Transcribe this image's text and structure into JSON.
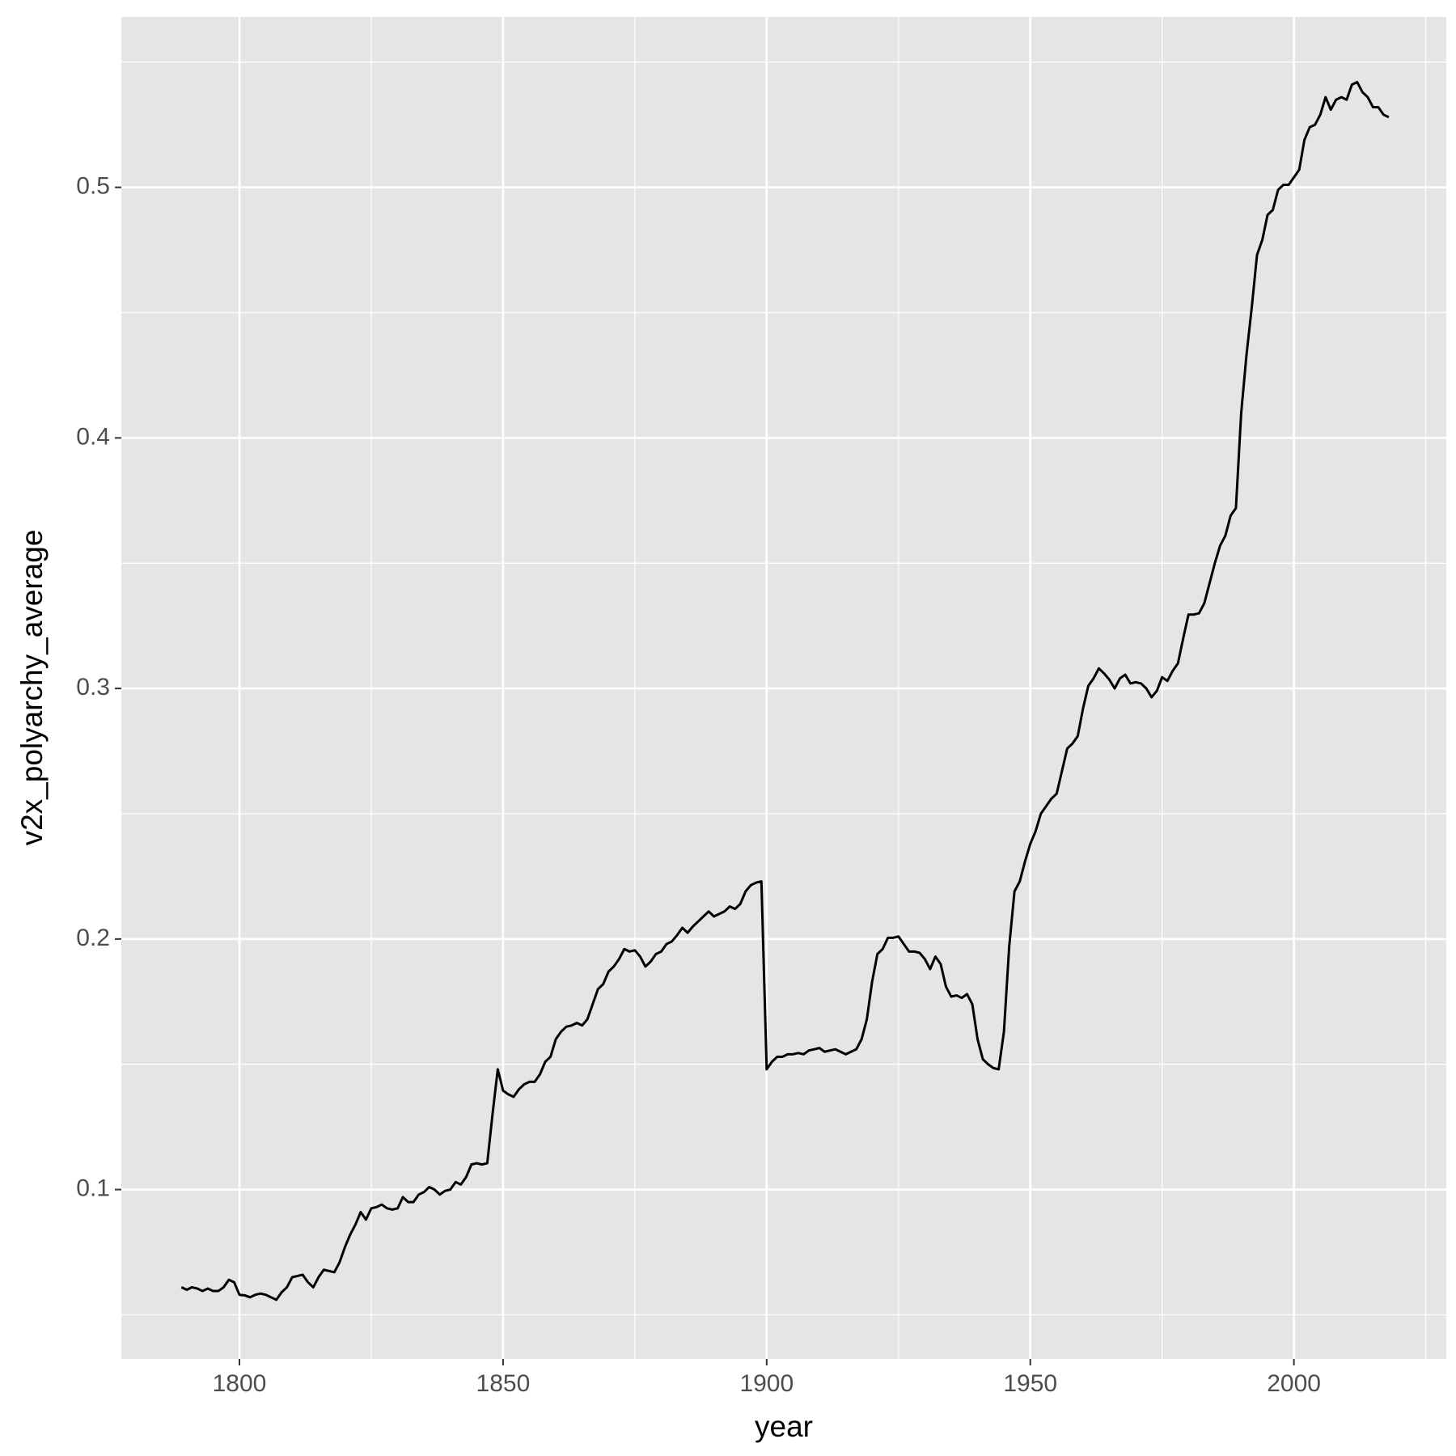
{
  "chart_data": {
    "type": "line",
    "x_label": "year",
    "y_label": "v2x_polyarchy_average",
    "x": [
      1789,
      1790,
      1791,
      1792,
      1793,
      1794,
      1795,
      1796,
      1797,
      1798,
      1799,
      1800,
      1801,
      1802,
      1803,
      1804,
      1805,
      1806,
      1807,
      1808,
      1809,
      1810,
      1811,
      1812,
      1813,
      1814,
      1815,
      1816,
      1817,
      1818,
      1819,
      1820,
      1821,
      1822,
      1823,
      1824,
      1825,
      1826,
      1827,
      1828,
      1829,
      1830,
      1831,
      1832,
      1833,
      1834,
      1835,
      1836,
      1837,
      1838,
      1839,
      1840,
      1841,
      1842,
      1843,
      1844,
      1845,
      1846,
      1847,
      1848,
      1849,
      1850,
      1851,
      1852,
      1853,
      1854,
      1855,
      1856,
      1857,
      1858,
      1859,
      1860,
      1861,
      1862,
      1863,
      1864,
      1865,
      1866,
      1867,
      1868,
      1869,
      1870,
      1871,
      1872,
      1873,
      1874,
      1875,
      1876,
      1877,
      1878,
      1879,
      1880,
      1881,
      1882,
      1883,
      1884,
      1885,
      1886,
      1887,
      1888,
      1889,
      1890,
      1891,
      1892,
      1893,
      1894,
      1895,
      1896,
      1897,
      1898,
      1899,
      1900,
      1901,
      1902,
      1903,
      1904,
      1905,
      1906,
      1907,
      1908,
      1909,
      1910,
      1911,
      1912,
      1913,
      1914,
      1915,
      1916,
      1917,
      1918,
      1919,
      1920,
      1921,
      1922,
      1923,
      1924,
      1925,
      1926,
      1927,
      1928,
      1929,
      1930,
      1931,
      1932,
      1933,
      1934,
      1935,
      1936,
      1937,
      1938,
      1939,
      1940,
      1941,
      1942,
      1943,
      1944,
      1945,
      1946,
      1947,
      1948,
      1949,
      1950,
      1951,
      1952,
      1953,
      1954,
      1955,
      1956,
      1957,
      1958,
      1959,
      1960,
      1961,
      1962,
      1963,
      1964,
      1965,
      1966,
      1967,
      1968,
      1969,
      1970,
      1971,
      1972,
      1973,
      1974,
      1975,
      1976,
      1977,
      1978,
      1979,
      1980,
      1981,
      1982,
      1983,
      1984,
      1985,
      1986,
      1987,
      1988,
      1989,
      1990,
      1991,
      1992,
      1993,
      1994,
      1995,
      1996,
      1997,
      1998,
      1999,
      2000,
      2001,
      2002,
      2003,
      2004,
      2005,
      2006,
      2007,
      2008,
      2009,
      2010,
      2011,
      2012,
      2013,
      2014,
      2015,
      2016,
      2017,
      2018
    ],
    "values": [
      0.061,
      0.06,
      0.061,
      0.0605,
      0.0595,
      0.0605,
      0.0595,
      0.0595,
      0.061,
      0.064,
      0.063,
      0.058,
      0.0578,
      0.057,
      0.058,
      0.0585,
      0.058,
      0.057,
      0.056,
      0.059,
      0.061,
      0.065,
      0.0655,
      0.066,
      0.063,
      0.061,
      0.065,
      0.068,
      0.0675,
      0.067,
      0.071,
      0.077,
      0.082,
      0.086,
      0.091,
      0.088,
      0.0925,
      0.093,
      0.094,
      0.0925,
      0.092,
      0.0925,
      0.097,
      0.095,
      0.095,
      0.098,
      0.099,
      0.101,
      0.1,
      0.098,
      0.0995,
      0.1,
      0.103,
      0.102,
      0.105,
      0.11,
      0.1105,
      0.11,
      0.1105,
      0.13,
      0.148,
      0.1395,
      0.138,
      0.137,
      0.14,
      0.142,
      0.143,
      0.143,
      0.146,
      0.151,
      0.153,
      0.16,
      0.163,
      0.165,
      0.1655,
      0.1665,
      0.1655,
      0.168,
      0.174,
      0.18,
      0.182,
      0.187,
      0.189,
      0.192,
      0.196,
      0.195,
      0.1955,
      0.193,
      0.189,
      0.191,
      0.194,
      0.195,
      0.198,
      0.199,
      0.2015,
      0.2045,
      0.2025,
      0.205,
      0.207,
      0.209,
      0.211,
      0.209,
      0.21,
      0.211,
      0.213,
      0.212,
      0.214,
      0.219,
      0.2215,
      0.2225,
      0.223,
      0.148,
      0.151,
      0.153,
      0.153,
      0.154,
      0.154,
      0.1545,
      0.154,
      0.1555,
      0.156,
      0.1565,
      0.155,
      0.1555,
      0.156,
      0.155,
      0.154,
      0.155,
      0.156,
      0.16,
      0.168,
      0.183,
      0.194,
      0.196,
      0.2005,
      0.2005,
      0.201,
      0.198,
      0.195,
      0.195,
      0.1945,
      0.192,
      0.188,
      0.193,
      0.19,
      0.181,
      0.177,
      0.1775,
      0.1765,
      0.178,
      0.174,
      0.16,
      0.152,
      0.15,
      0.1485,
      0.148,
      0.163,
      0.197,
      0.219,
      0.223,
      0.231,
      0.238,
      0.243,
      0.25,
      0.253,
      0.256,
      0.258,
      0.267,
      0.276,
      0.278,
      0.281,
      0.292,
      0.301,
      0.304,
      0.308,
      0.306,
      0.3035,
      0.3,
      0.304,
      0.3055,
      0.302,
      0.3025,
      0.302,
      0.3,
      0.2965,
      0.299,
      0.3045,
      0.303,
      0.307,
      0.31,
      0.32,
      0.3295,
      0.3295,
      0.33,
      0.334,
      0.342,
      0.35,
      0.357,
      0.361,
      0.369,
      0.372,
      0.41,
      0.433,
      0.452,
      0.473,
      0.479,
      0.489,
      0.491,
      0.499,
      0.501,
      0.501,
      0.504,
      0.507,
      0.519,
      0.524,
      0.525,
      0.529,
      0.536,
      0.531,
      0.535,
      0.536,
      0.535,
      0.541,
      0.542,
      0.538,
      0.536,
      0.532,
      0.532,
      0.529,
      0.528
    ],
    "color": "#000000",
    "xlim": [
      1777.6,
      2028.9
    ],
    "xticks": [
      1800,
      1850,
      1900,
      1950,
      2000
    ],
    "xminorticks": [
      1825,
      1875,
      1925,
      1975,
      2025
    ],
    "ylim": [
      0.0324,
      0.568
    ],
    "yticks": [
      0.1,
      0.2,
      0.3,
      0.4,
      0.5
    ],
    "yminorticks": [
      0.05,
      0.15,
      0.25,
      0.35,
      0.45,
      0.55
    ],
    "grid": true
  }
}
